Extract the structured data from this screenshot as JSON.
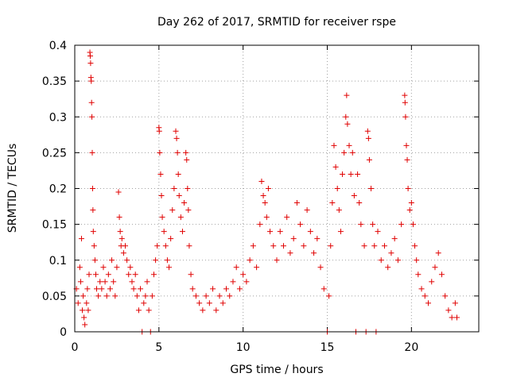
{
  "chart_data": {
    "type": "scatter",
    "title": "Day 262 of 2017, SRMTID for receiver rspe",
    "xlabel": "GPS time / hours",
    "ylabel": "SRMTID / TECUs",
    "xlim": [
      0,
      24
    ],
    "ylim": [
      0,
      0.4
    ],
    "xticks": [
      0,
      5,
      10,
      15,
      20
    ],
    "xtick_labels": [
      "0",
      "5",
      "10",
      "15",
      "20"
    ],
    "yticks": [
      0,
      0.05,
      0.1,
      0.15,
      0.2,
      0.25,
      0.3,
      0.35,
      0.4
    ],
    "ytick_labels": [
      "0",
      "0.05",
      "0.1",
      "0.15",
      "0.2",
      "0.25",
      "0.3",
      "0.35",
      "0.4"
    ],
    "grid": true,
    "legend": "none",
    "marker": "plus",
    "marker_color": "#e00000",
    "series": [
      {
        "name": "SRMTID",
        "points": [
          [
            0.1,
            0.06
          ],
          [
            0.2,
            0.04
          ],
          [
            0.3,
            0.09
          ],
          [
            0.35,
            0.07
          ],
          [
            0.4,
            0.13
          ],
          [
            0.45,
            0.03
          ],
          [
            0.5,
            0.05
          ],
          [
            0.55,
            0.02
          ],
          [
            0.6,
            0.01
          ],
          [
            0.7,
            0.04
          ],
          [
            0.75,
            0.06
          ],
          [
            0.8,
            0.03
          ],
          [
            0.85,
            0.08
          ],
          [
            0.9,
            0.39
          ],
          [
            0.92,
            0.385
          ],
          [
            0.94,
            0.375
          ],
          [
            0.96,
            0.355
          ],
          [
            0.98,
            0.35
          ],
          [
            1.0,
            0.32
          ],
          [
            1.02,
            0.3
          ],
          [
            1.04,
            0.25
          ],
          [
            1.06,
            0.2
          ],
          [
            1.08,
            0.17
          ],
          [
            1.1,
            0.14
          ],
          [
            1.15,
            0.12
          ],
          [
            1.2,
            0.1
          ],
          [
            1.25,
            0.08
          ],
          [
            1.3,
            0.06
          ],
          [
            1.4,
            0.05
          ],
          [
            1.5,
            0.07
          ],
          [
            1.6,
            0.06
          ],
          [
            1.7,
            0.09
          ],
          [
            1.8,
            0.07
          ],
          [
            1.9,
            0.05
          ],
          [
            2.0,
            0.08
          ],
          [
            2.1,
            0.06
          ],
          [
            2.2,
            0.1
          ],
          [
            2.3,
            0.07
          ],
          [
            2.4,
            0.05
          ],
          [
            2.5,
            0.09
          ],
          [
            2.6,
            0.195
          ],
          [
            2.65,
            0.16
          ],
          [
            2.7,
            0.14
          ],
          [
            2.75,
            0.12
          ],
          [
            2.8,
            0.13
          ],
          [
            2.9,
            0.11
          ],
          [
            3.0,
            0.12
          ],
          [
            3.1,
            0.1
          ],
          [
            3.2,
            0.08
          ],
          [
            3.3,
            0.09
          ],
          [
            3.4,
            0.07
          ],
          [
            3.5,
            0.06
          ],
          [
            3.6,
            0.08
          ],
          [
            3.7,
            0.05
          ],
          [
            3.8,
            0.03
          ],
          [
            3.9,
            0.06
          ],
          [
            4.0,
            0.0
          ],
          [
            4.1,
            0.04
          ],
          [
            4.2,
            0.05
          ],
          [
            4.3,
            0.07
          ],
          [
            4.4,
            0.03
          ],
          [
            4.5,
            0.0
          ],
          [
            4.6,
            0.05
          ],
          [
            4.7,
            0.08
          ],
          [
            4.8,
            0.1
          ],
          [
            4.9,
            0.12
          ],
          [
            5.0,
            0.285
          ],
          [
            5.02,
            0.28
          ],
          [
            5.05,
            0.25
          ],
          [
            5.1,
            0.22
          ],
          [
            5.15,
            0.19
          ],
          [
            5.2,
            0.16
          ],
          [
            5.3,
            0.14
          ],
          [
            5.4,
            0.12
          ],
          [
            5.5,
            0.1
          ],
          [
            5.6,
            0.09
          ],
          [
            5.7,
            0.13
          ],
          [
            5.8,
            0.17
          ],
          [
            5.9,
            0.2
          ],
          [
            6.0,
            0.28
          ],
          [
            6.05,
            0.27
          ],
          [
            6.1,
            0.25
          ],
          [
            6.15,
            0.22
          ],
          [
            6.2,
            0.19
          ],
          [
            6.3,
            0.16
          ],
          [
            6.4,
            0.14
          ],
          [
            6.5,
            0.18
          ],
          [
            6.6,
            0.25
          ],
          [
            6.65,
            0.24
          ],
          [
            6.7,
            0.2
          ],
          [
            6.75,
            0.17
          ],
          [
            6.8,
            0.12
          ],
          [
            6.9,
            0.08
          ],
          [
            7.0,
            0.06
          ],
          [
            7.2,
            0.05
          ],
          [
            7.4,
            0.04
          ],
          [
            7.6,
            0.03
          ],
          [
            7.8,
            0.05
          ],
          [
            8.0,
            0.04
          ],
          [
            8.2,
            0.06
          ],
          [
            8.4,
            0.03
          ],
          [
            8.6,
            0.05
          ],
          [
            8.8,
            0.04
          ],
          [
            9.0,
            0.06
          ],
          [
            9.2,
            0.05
          ],
          [
            9.4,
            0.07
          ],
          [
            9.6,
            0.09
          ],
          [
            9.8,
            0.06
          ],
          [
            10.0,
            0.08
          ],
          [
            10.2,
            0.07
          ],
          [
            10.4,
            0.1
          ],
          [
            10.6,
            0.12
          ],
          [
            10.8,
            0.09
          ],
          [
            11.0,
            0.15
          ],
          [
            11.1,
            0.21
          ],
          [
            11.2,
            0.19
          ],
          [
            11.3,
            0.18
          ],
          [
            11.4,
            0.16
          ],
          [
            11.5,
            0.2
          ],
          [
            11.6,
            0.14
          ],
          [
            11.8,
            0.12
          ],
          [
            12.0,
            0.1
          ],
          [
            12.2,
            0.14
          ],
          [
            12.4,
            0.12
          ],
          [
            12.6,
            0.16
          ],
          [
            12.8,
            0.11
          ],
          [
            13.0,
            0.13
          ],
          [
            13.2,
            0.18
          ],
          [
            13.4,
            0.15
          ],
          [
            13.6,
            0.12
          ],
          [
            13.8,
            0.17
          ],
          [
            14.0,
            0.14
          ],
          [
            14.2,
            0.11
          ],
          [
            14.4,
            0.13
          ],
          [
            14.6,
            0.09
          ],
          [
            14.8,
            0.06
          ],
          [
            15.0,
            0.0
          ],
          [
            15.1,
            0.05
          ],
          [
            15.2,
            0.12
          ],
          [
            15.3,
            0.18
          ],
          [
            15.4,
            0.26
          ],
          [
            15.5,
            0.23
          ],
          [
            15.6,
            0.2
          ],
          [
            15.7,
            0.17
          ],
          [
            15.8,
            0.14
          ],
          [
            15.9,
            0.22
          ],
          [
            16.0,
            0.25
          ],
          [
            16.1,
            0.3
          ],
          [
            16.15,
            0.33
          ],
          [
            16.2,
            0.29
          ],
          [
            16.3,
            0.26
          ],
          [
            16.4,
            0.22
          ],
          [
            16.5,
            0.25
          ],
          [
            16.6,
            0.19
          ],
          [
            16.7,
            0.0
          ],
          [
            16.8,
            0.22
          ],
          [
            16.9,
            0.18
          ],
          [
            17.0,
            0.15
          ],
          [
            17.2,
            0.12
          ],
          [
            17.3,
            0.0
          ],
          [
            17.4,
            0.28
          ],
          [
            17.45,
            0.27
          ],
          [
            17.5,
            0.24
          ],
          [
            17.6,
            0.2
          ],
          [
            17.7,
            0.15
          ],
          [
            17.8,
            0.12
          ],
          [
            17.9,
            0.0
          ],
          [
            18.0,
            0.14
          ],
          [
            18.2,
            0.1
          ],
          [
            18.4,
            0.12
          ],
          [
            18.6,
            0.09
          ],
          [
            18.8,
            0.11
          ],
          [
            19.0,
            0.13
          ],
          [
            19.2,
            0.1
          ],
          [
            19.4,
            0.15
          ],
          [
            19.6,
            0.33
          ],
          [
            19.62,
            0.32
          ],
          [
            19.65,
            0.3
          ],
          [
            19.7,
            0.26
          ],
          [
            19.75,
            0.24
          ],
          [
            19.8,
            0.2
          ],
          [
            19.9,
            0.17
          ],
          [
            20.0,
            0.18
          ],
          [
            20.1,
            0.15
          ],
          [
            20.2,
            0.12
          ],
          [
            20.3,
            0.1
          ],
          [
            20.4,
            0.08
          ],
          [
            20.6,
            0.06
          ],
          [
            20.8,
            0.05
          ],
          [
            21.0,
            0.04
          ],
          [
            21.2,
            0.07
          ],
          [
            21.4,
            0.09
          ],
          [
            21.6,
            0.11
          ],
          [
            21.8,
            0.08
          ],
          [
            22.0,
            0.05
          ],
          [
            22.2,
            0.03
          ],
          [
            22.4,
            0.02
          ],
          [
            22.6,
            0.04
          ],
          [
            22.7,
            0.02
          ]
        ]
      }
    ]
  }
}
